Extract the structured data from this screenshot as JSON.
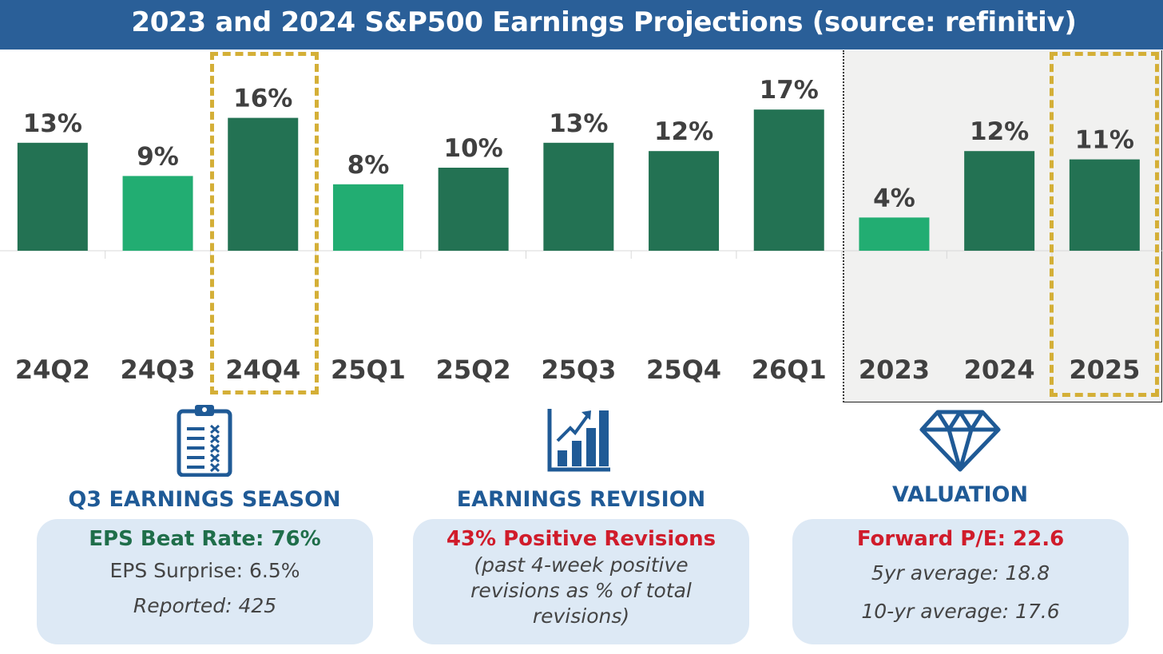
{
  "title": "2023 and 2024 S&P500 Earnings Projections (source: refinitiv)",
  "colors": {
    "header_bg": "#2a5f98",
    "bar_dark": "#237253",
    "bar_light": "#22ad72",
    "highlight": "#d4af37",
    "accent_blue": "#1f5a96",
    "green_text": "#1f6e4a",
    "red_text": "#d01c2b",
    "card_bg": "#dde9f5",
    "panel_bg": "#f1f1f0"
  },
  "chart_data": {
    "type": "bar",
    "title": "2023 and 2024 S&P500 Earnings Projections (source: refinitiv)",
    "categories": [
      "24Q2",
      "24Q3",
      "24Q4",
      "25Q1",
      "25Q2",
      "25Q3",
      "25Q4",
      "26Q1",
      "2023",
      "2024",
      "2025"
    ],
    "values": [
      13,
      9,
      16,
      8,
      10,
      13,
      12,
      17,
      4,
      12,
      11
    ],
    "value_labels": [
      "13%",
      "9%",
      "16%",
      "8%",
      "10%",
      "13%",
      "12%",
      "17%",
      "4%",
      "12%",
      "11%"
    ],
    "bar_shade": [
      "dark",
      "light",
      "dark",
      "light",
      "dark",
      "dark",
      "dark",
      "dark",
      "light",
      "dark",
      "dark"
    ],
    "unit": "%",
    "ylim": [
      0,
      20
    ],
    "grid": false,
    "legend": "none",
    "highlighted_categories": [
      "24Q4",
      "2025"
    ],
    "annual_group": [
      "2023",
      "2024",
      "2025"
    ]
  },
  "sections": [
    {
      "icon": "clipboard-checklist-icon",
      "title": "Q3 EARNINGS SEASON",
      "headline": "EPS Beat Rate: 76%",
      "lines": [
        "EPS Surprise: 6.5%",
        "Reported: 425"
      ]
    },
    {
      "icon": "rising-bar-chart-icon",
      "title": "EARNINGS REVISION",
      "headline": "43% Positive Revisions",
      "lines": [
        "(past 4-week positive",
        "revisions as % of total",
        "revisions)"
      ]
    },
    {
      "icon": "diamond-icon",
      "title": "VALUATION",
      "headline": "Forward P/E: 22.6",
      "lines": [
        "5yr average: 18.8",
        "10-yr average: 17.6"
      ]
    }
  ]
}
